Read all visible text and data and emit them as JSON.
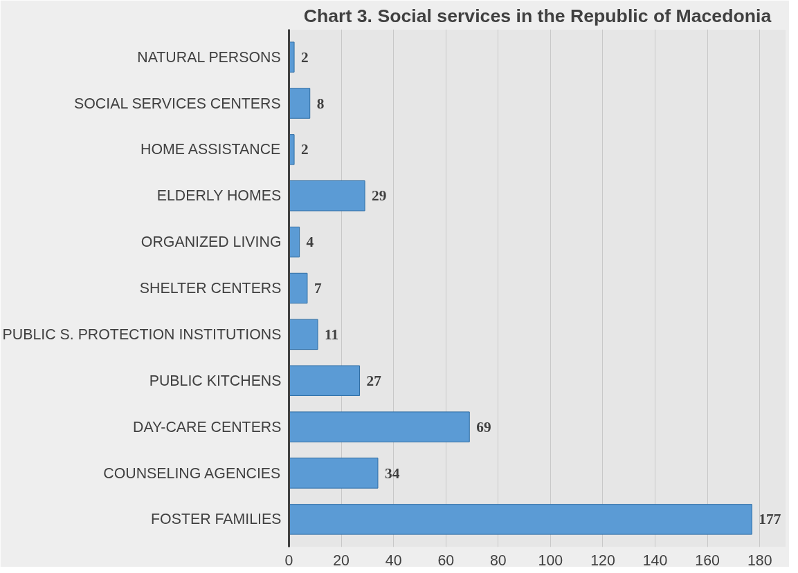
{
  "chart_data": {
    "type": "bar",
    "orientation": "horizontal",
    "title": "Chart 3. Social services in the Republic of Macedonia",
    "categories": [
      "NATURAL PERSONS",
      "SOCIAL SERVICES CENTERS",
      "HOME ASSISTANCE",
      "ELDERLY HOMES",
      "ORGANIZED LIVING",
      "SHELTER CENTERS",
      "PUBLIC S. PROTECTION INSTITUTIONS",
      "PUBLIC KITCHENS",
      "DAY-CARE CENTERS",
      "COUNSELING AGENCIES",
      "FOSTER FAMILIES"
    ],
    "values": [
      2,
      8,
      2,
      29,
      4,
      7,
      11,
      27,
      69,
      34,
      177
    ],
    "color": "#5b9bd5",
    "xlim": [
      0,
      190
    ],
    "xticks": [
      0,
      20,
      40,
      60,
      80,
      100,
      120,
      140,
      160,
      180
    ],
    "grid": "x",
    "data_labels": true
  }
}
